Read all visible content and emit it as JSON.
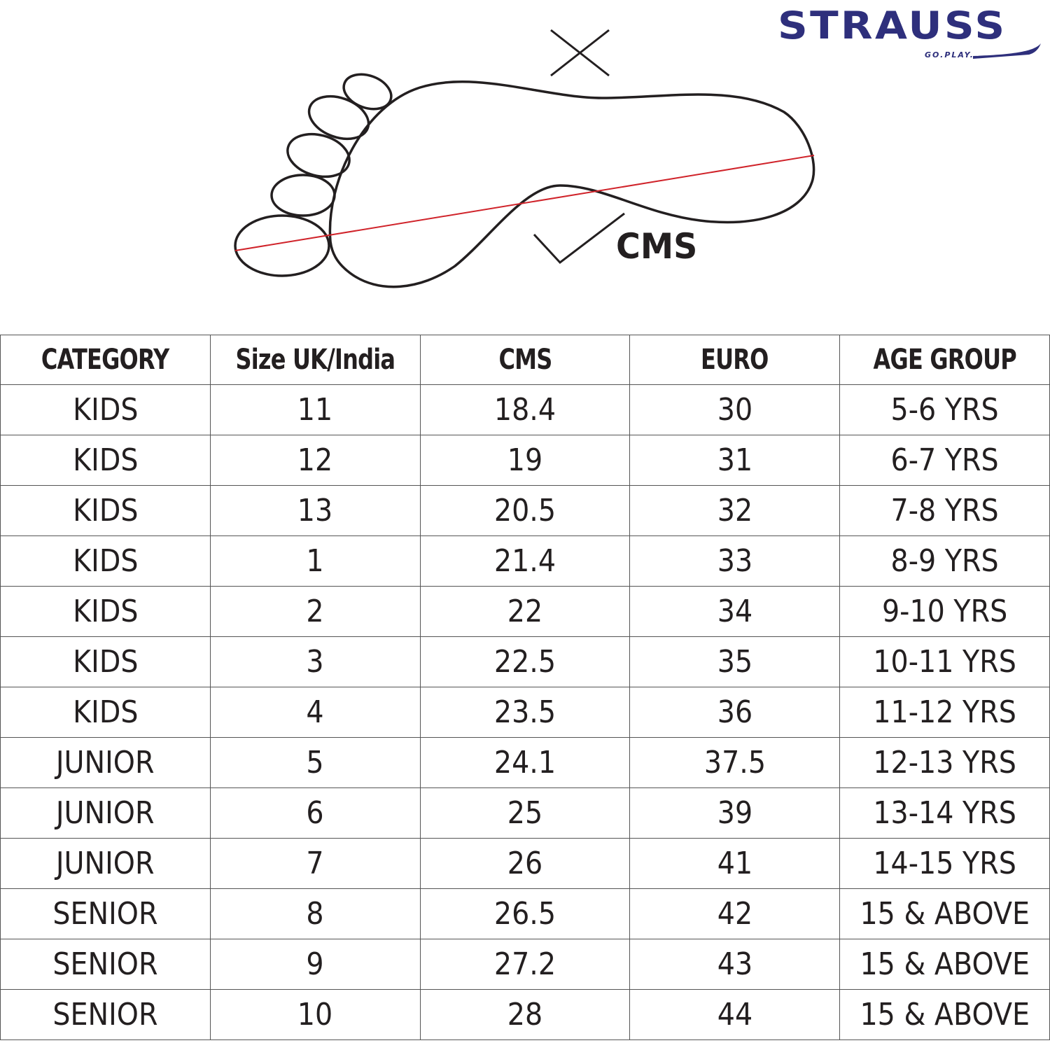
{
  "brand": {
    "name": "STRAUSS",
    "tagline": "GO.PLAY.",
    "color": "#2e2f7c"
  },
  "diagram": {
    "measure_label": "CMS",
    "wrong_icon": "cross-icon",
    "right_icon": "check-icon",
    "measure_line_color": "#d0232a"
  },
  "table": {
    "headers": [
      "CATEGORY",
      "Size UK/India",
      "CMS",
      "EURO",
      "AGE GROUP"
    ],
    "rows": [
      [
        "KIDS",
        "11",
        "18.4",
        "30",
        "5-6 YRS"
      ],
      [
        "KIDS",
        "12",
        "19",
        "31",
        "6-7 YRS"
      ],
      [
        "KIDS",
        "13",
        "20.5",
        "32",
        "7-8 YRS"
      ],
      [
        "KIDS",
        "1",
        "21.4",
        "33",
        "8-9 YRS"
      ],
      [
        "KIDS",
        "2",
        "22",
        "34",
        "9-10 YRS"
      ],
      [
        "KIDS",
        "3",
        "22.5",
        "35",
        "10-11 YRS"
      ],
      [
        "KIDS",
        "4",
        "23.5",
        "36",
        "11-12 YRS"
      ],
      [
        "JUNIOR",
        "5",
        "24.1",
        "37.5",
        "12-13 YRS"
      ],
      [
        "JUNIOR",
        "6",
        "25",
        "39",
        "13-14 YRS"
      ],
      [
        "JUNIOR",
        "7",
        "26",
        "41",
        "14-15 YRS"
      ],
      [
        "SENIOR",
        "8",
        "26.5",
        "42",
        "15 & ABOVE"
      ],
      [
        "SENIOR",
        "9",
        "27.2",
        "43",
        "15 & ABOVE"
      ],
      [
        "SENIOR",
        "10",
        "28",
        "44",
        "15 & ABOVE"
      ]
    ]
  }
}
